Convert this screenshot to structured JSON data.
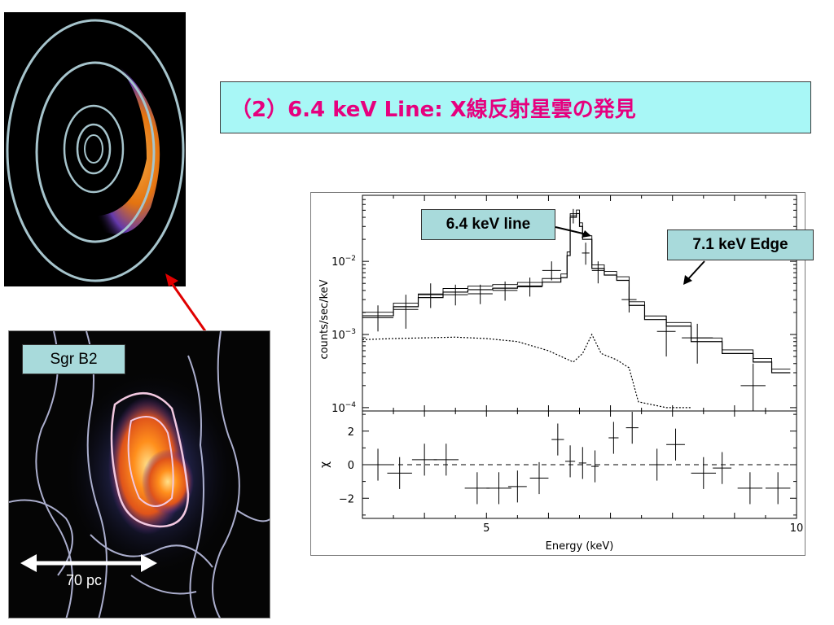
{
  "title": "（2）6.4 keV Line: X線反射星雲の発見",
  "sgr_label": "Sgr B2",
  "scale_label": "70 pc",
  "annotations": {
    "line_label": "6.4 keV line",
    "edge_label": "7.1 keV Edge"
  },
  "colors": {
    "title_text": "#e6007e",
    "title_bg": "#a8f7f6",
    "label_bg": "#a8dadb",
    "pointer_arrow": "#e00000"
  },
  "chart_data": [
    {
      "type": "line",
      "panel": "spectrum",
      "xlabel": "",
      "ylabel": "counts/sec/keV",
      "xlim": [
        3.0,
        10.0
      ],
      "ylim": [
        9e-05,
        0.08
      ],
      "yscale": "log",
      "yticks": [
        {
          "value": 0.0001,
          "base": "10",
          "exp": "−4"
        },
        {
          "value": 0.001,
          "base": "10",
          "exp": "−3"
        },
        {
          "value": 0.01,
          "base": "10",
          "exp": "−2"
        }
      ],
      "series": [
        {
          "style": "model-step",
          "values": [
            {
              "x0": 3.0,
              "x1": 3.5,
              "y": 0.0018
            },
            {
              "x0": 3.5,
              "x1": 3.9,
              "y": 0.0024
            },
            {
              "x0": 3.9,
              "x1": 4.3,
              "y": 0.0032
            },
            {
              "x0": 4.3,
              "x1": 4.7,
              "y": 0.0038
            },
            {
              "x0": 4.7,
              "x1": 5.1,
              "y": 0.0041
            },
            {
              "x0": 5.1,
              "x1": 5.5,
              "y": 0.0043
            },
            {
              "x0": 5.5,
              "x1": 5.9,
              "y": 0.0046
            },
            {
              "x0": 5.9,
              "x1": 6.2,
              "y": 0.0052
            },
            {
              "x0": 6.2,
              "x1": 6.3,
              "y": 0.006
            },
            {
              "x0": 6.3,
              "x1": 6.35,
              "y": 0.012
            },
            {
              "x0": 6.35,
              "x1": 6.45,
              "y": 0.04
            },
            {
              "x0": 6.45,
              "x1": 6.5,
              "y": 0.045
            },
            {
              "x0": 6.5,
              "x1": 6.55,
              "y": 0.03
            },
            {
              "x0": 6.55,
              "x1": 6.7,
              "y": 0.02
            },
            {
              "x0": 6.7,
              "x1": 6.9,
              "y": 0.008
            },
            {
              "x0": 6.9,
              "x1": 7.1,
              "y": 0.0065
            },
            {
              "x0": 7.1,
              "x1": 7.3,
              "y": 0.0055
            },
            {
              "x0": 7.3,
              "x1": 7.55,
              "y": 0.0025
            },
            {
              "x0": 7.55,
              "x1": 7.9,
              "y": 0.0016
            },
            {
              "x0": 7.9,
              "x1": 8.3,
              "y": 0.0013
            },
            {
              "x0": 8.3,
              "x1": 8.8,
              "y": 0.0008
            },
            {
              "x0": 8.8,
              "x1": 9.3,
              "y": 0.00055
            },
            {
              "x0": 9.3,
              "x1": 9.6,
              "y": 0.00042
            },
            {
              "x0": 9.6,
              "x1": 9.9,
              "y": 0.0003
            }
          ]
        },
        {
          "style": "data-crosses",
          "points": [
            {
              "x": 3.25,
              "dx": 0.25,
              "y": 0.0017,
              "ylo": 0.0011,
              "yhi": 0.0025
            },
            {
              "x": 3.7,
              "dx": 0.2,
              "y": 0.0022,
              "ylo": 0.0012,
              "yhi": 0.0035
            },
            {
              "x": 4.1,
              "dx": 0.2,
              "y": 0.0035,
              "ylo": 0.0023,
              "yhi": 0.005
            },
            {
              "x": 4.5,
              "dx": 0.2,
              "y": 0.0035,
              "ylo": 0.0025,
              "yhi": 0.0048
            },
            {
              "x": 4.9,
              "dx": 0.2,
              "y": 0.0036,
              "ylo": 0.0026,
              "yhi": 0.0048
            },
            {
              "x": 5.3,
              "dx": 0.2,
              "y": 0.004,
              "ylo": 0.0029,
              "yhi": 0.0053
            },
            {
              "x": 5.7,
              "dx": 0.2,
              "y": 0.0045,
              "ylo": 0.0033,
              "yhi": 0.006
            },
            {
              "x": 6.05,
              "dx": 0.15,
              "y": 0.0075,
              "ylo": 0.0055,
              "yhi": 0.01
            },
            {
              "x": 6.4,
              "dx": 0.05,
              "y": 0.042,
              "ylo": 0.033,
              "yhi": 0.052
            },
            {
              "x": 6.6,
              "dx": 0.06,
              "y": 0.013,
              "ylo": 0.009,
              "yhi": 0.018
            },
            {
              "x": 6.8,
              "dx": 0.1,
              "y": 0.0075,
              "ylo": 0.005,
              "yhi": 0.01
            },
            {
              "x": 7.3,
              "dx": 0.12,
              "y": 0.003,
              "ylo": 0.002,
              "yhi": 0.0045
            },
            {
              "x": 7.9,
              "dx": 0.15,
              "y": 0.0011,
              "ylo": 0.0005,
              "yhi": 0.0018
            },
            {
              "x": 8.4,
              "dx": 0.25,
              "y": 0.0009,
              "ylo": 0.0004,
              "yhi": 0.0014
            },
            {
              "x": 9.3,
              "dx": 0.2,
              "y": 0.0002,
              "ylo": 9e-05,
              "yhi": 0.0004
            }
          ]
        },
        {
          "style": "background-dotted",
          "points": [
            {
              "x": 3.0,
              "y": 0.00085
            },
            {
              "x": 3.5,
              "y": 0.00088
            },
            {
              "x": 4.0,
              "y": 0.0009
            },
            {
              "x": 4.5,
              "y": 0.00092
            },
            {
              "x": 5.0,
              "y": 0.00088
            },
            {
              "x": 5.5,
              "y": 0.0008
            },
            {
              "x": 6.0,
              "y": 0.0006
            },
            {
              "x": 6.4,
              "y": 0.00042
            },
            {
              "x": 6.55,
              "y": 0.00055
            },
            {
              "x": 6.7,
              "y": 0.001
            },
            {
              "x": 6.85,
              "y": 0.00055
            },
            {
              "x": 7.1,
              "y": 0.00045
            },
            {
              "x": 7.3,
              "y": 0.00035
            },
            {
              "x": 7.45,
              "y": 0.00012
            },
            {
              "x": 7.9,
              "y": 0.0001
            },
            {
              "x": 8.3,
              "y": 0.0001
            }
          ]
        }
      ]
    },
    {
      "type": "scatter",
      "panel": "residuals",
      "xlabel": "Energy (keV)",
      "ylabel": "χ",
      "xlim": [
        3.0,
        10.0
      ],
      "ylim": [
        -3.2,
        3.2
      ],
      "xticks": [
        5,
        10
      ],
      "yticks": [
        -2,
        0,
        2
      ],
      "reference_line": 0,
      "points": [
        {
          "x": 3.25,
          "dx": 0.25,
          "y": 0.0
        },
        {
          "x": 3.6,
          "dx": 0.2,
          "y": -0.5
        },
        {
          "x": 4.0,
          "dx": 0.2,
          "y": 0.3
        },
        {
          "x": 4.35,
          "dx": 0.2,
          "y": 0.3
        },
        {
          "x": 4.85,
          "dx": 0.2,
          "y": -1.4
        },
        {
          "x": 5.2,
          "dx": 0.2,
          "y": -1.4
        },
        {
          "x": 5.5,
          "dx": 0.15,
          "y": -1.3
        },
        {
          "x": 5.85,
          "dx": 0.15,
          "y": -0.8
        },
        {
          "x": 6.15,
          "dx": 0.1,
          "y": 1.5
        },
        {
          "x": 6.35,
          "dx": 0.08,
          "y": 0.2
        },
        {
          "x": 6.55,
          "dx": 0.06,
          "y": 0.1
        },
        {
          "x": 6.75,
          "dx": 0.06,
          "y": -0.1
        },
        {
          "x": 7.05,
          "dx": 0.08,
          "y": 1.6
        },
        {
          "x": 7.35,
          "dx": 0.1,
          "y": 2.2
        },
        {
          "x": 7.75,
          "dx": 0.12,
          "y": 0.0
        },
        {
          "x": 8.05,
          "dx": 0.15,
          "y": 1.2
        },
        {
          "x": 8.5,
          "dx": 0.2,
          "y": -0.5
        },
        {
          "x": 8.8,
          "dx": 0.15,
          "y": -0.2
        },
        {
          "x": 9.25,
          "dx": 0.2,
          "y": -1.4
        },
        {
          "x": 9.7,
          "dx": 0.2,
          "y": -1.4
        }
      ]
    }
  ]
}
